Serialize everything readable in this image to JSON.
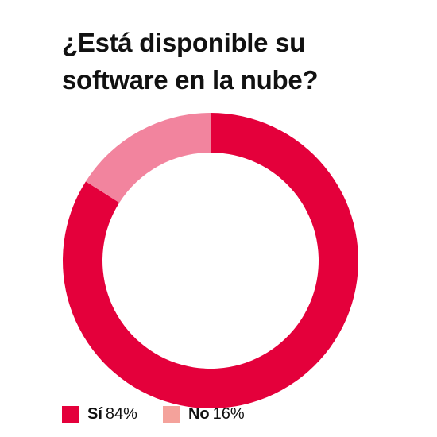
{
  "title": {
    "line1": "¿Está disponible su",
    "line2": "software en la nube?"
  },
  "chart_data": {
    "type": "pie",
    "variant": "donut",
    "title": "¿Está disponible su software en la nube?",
    "categories": [
      "Sí",
      "No"
    ],
    "values": [
      84,
      16
    ],
    "value_labels": [
      "84%",
      "16%"
    ],
    "unit": "%",
    "colors": [
      "#e4003b",
      "#f2849e"
    ],
    "legend_colors": [
      "#e4003b",
      "#f4a29b"
    ],
    "legend_position": "bottom-left",
    "start": "top, clockwise"
  }
}
